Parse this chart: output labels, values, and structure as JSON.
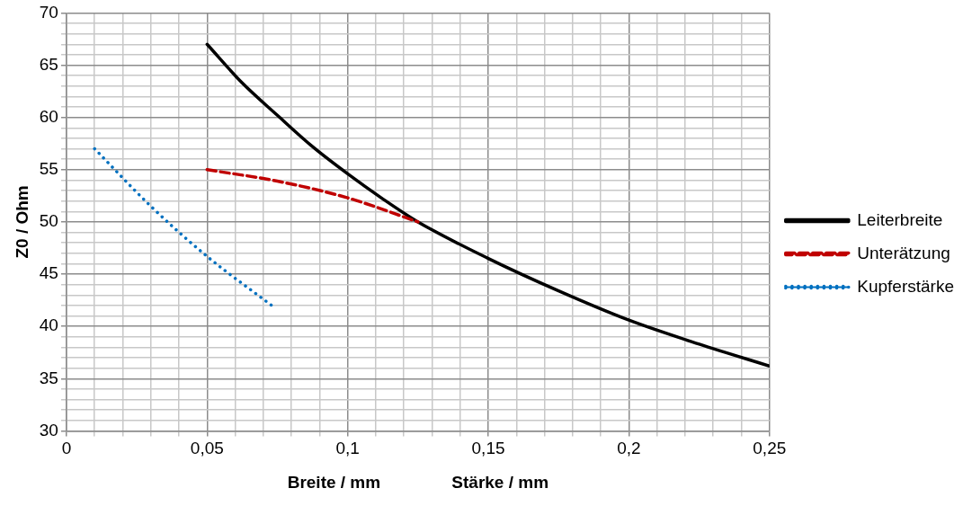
{
  "chart_data": {
    "type": "line",
    "xlabel": "Breite / mm               Stärke / mm",
    "ylabel": "Z0 / Ohm",
    "xlim": [
      0,
      0.25
    ],
    "ylim": [
      30,
      70
    ],
    "xticks": [
      {
        "value": 0,
        "label": "0"
      },
      {
        "value": 0.01,
        "label": null
      },
      {
        "value": 0.02,
        "label": null
      },
      {
        "value": 0.03,
        "label": null
      },
      {
        "value": 0.04,
        "label": null
      },
      {
        "value": 0.05,
        "label": "0,05"
      },
      {
        "value": 0.06,
        "label": null
      },
      {
        "value": 0.07,
        "label": null
      },
      {
        "value": 0.08,
        "label": null
      },
      {
        "value": 0.09,
        "label": null
      },
      {
        "value": 0.1,
        "label": "0,1"
      },
      {
        "value": 0.11,
        "label": null
      },
      {
        "value": 0.12,
        "label": null
      },
      {
        "value": 0.13,
        "label": null
      },
      {
        "value": 0.14,
        "label": null
      },
      {
        "value": 0.15,
        "label": "0,15"
      },
      {
        "value": 0.16,
        "label": null
      },
      {
        "value": 0.17,
        "label": null
      },
      {
        "value": 0.18,
        "label": null
      },
      {
        "value": 0.19,
        "label": null
      },
      {
        "value": 0.2,
        "label": "0,2"
      },
      {
        "value": 0.21,
        "label": null
      },
      {
        "value": 0.22,
        "label": null
      },
      {
        "value": 0.23,
        "label": null
      },
      {
        "value": 0.24,
        "label": null
      },
      {
        "value": 0.25,
        "label": "0,25"
      }
    ],
    "yticks": [
      30,
      {
        "value": 31,
        "label": null
      },
      {
        "value": 32,
        "label": null
      },
      {
        "value": 33,
        "label": null
      },
      {
        "value": 34,
        "label": null
      },
      35,
      {
        "value": 36,
        "label": null
      },
      {
        "value": 37,
        "label": null
      },
      {
        "value": 38,
        "label": null
      },
      {
        "value": 39,
        "label": null
      },
      40,
      {
        "value": 41,
        "label": null
      },
      {
        "value": 42,
        "label": null
      },
      {
        "value": 43,
        "label": null
      },
      {
        "value": 44,
        "label": null
      },
      45,
      {
        "value": 46,
        "label": null
      },
      {
        "value": 47,
        "label": null
      },
      {
        "value": 48,
        "label": null
      },
      {
        "value": 49,
        "label": null
      },
      50,
      {
        "value": 51,
        "label": null
      },
      {
        "value": 52,
        "label": null
      },
      {
        "value": 53,
        "label": null
      },
      {
        "value": 54,
        "label": null
      },
      55,
      {
        "value": 56,
        "label": null
      },
      {
        "value": 57,
        "label": null
      },
      {
        "value": 58,
        "label": null
      },
      {
        "value": 59,
        "label": null
      },
      60,
      {
        "value": 61,
        "label": null
      },
      {
        "value": 62,
        "label": null
      },
      {
        "value": 63,
        "label": null
      },
      {
        "value": 64,
        "label": null
      },
      65,
      {
        "value": 66,
        "label": null
      },
      {
        "value": 67,
        "label": null
      },
      {
        "value": 68,
        "label": null
      },
      {
        "value": 69,
        "label": null
      },
      70
    ],
    "grid": true,
    "legend": "right",
    "marker": "none",
    "series": [
      {
        "name": "Leiterbreite",
        "color": "#000000",
        "line_style": "solid",
        "x": [
          0.05,
          0.0625,
          0.075,
          0.0875,
          0.1,
          0.1125,
          0.125,
          0.15,
          0.175,
          0.2,
          0.225,
          0.25
        ],
        "values": [
          67,
          63.3,
          60.2,
          57.2,
          54.6,
          52.2,
          50,
          46.5,
          43.4,
          40.6,
          38.3,
          36.2
        ]
      },
      {
        "name": "Unterätzung",
        "color": "#c00000",
        "line_style": "dashed",
        "x": [
          0.05,
          0.075,
          0.1,
          0.125
        ],
        "values": [
          55,
          53.9,
          52.3,
          50
        ]
      },
      {
        "name": "Kupferstärke",
        "color": "#0070c0",
        "line_style": "dotted",
        "x": [
          0.01,
          0.03,
          0.05,
          0.074
        ],
        "values": [
          57,
          51.5,
          46.7,
          41.8
        ]
      }
    ]
  }
}
